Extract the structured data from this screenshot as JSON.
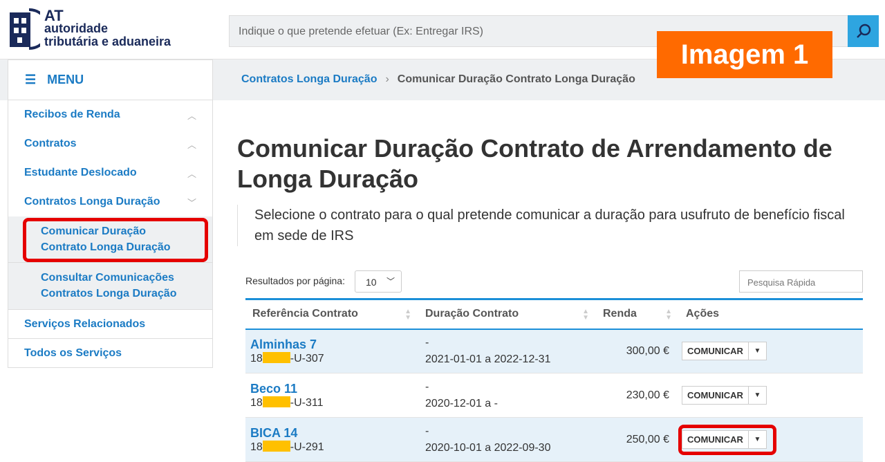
{
  "header": {
    "logo_line1": "AT",
    "logo_line2": "autoridade",
    "logo_line3": "tributária e aduaneira",
    "search_placeholder": "Indique o que pretende efetuar (Ex: Entregar IRS)"
  },
  "badge": "Imagem 1",
  "menu": {
    "label": "MENU"
  },
  "breadcrumb": {
    "parent": "Contratos Longa Duração",
    "current": "Comunicar Duração Contrato Longa Duração"
  },
  "sidebar": {
    "items": [
      {
        "label": "Recibos de Renda"
      },
      {
        "label": "Contratos"
      },
      {
        "label": "Estudante Deslocado"
      },
      {
        "label": "Contratos Longa Duração"
      }
    ],
    "sub": [
      {
        "label": "Comunicar Duração Contrato Longa Duração"
      },
      {
        "label": "Consultar Comunicações Contratos Longa Duração"
      }
    ],
    "bottom": [
      {
        "label": "Serviços Relacionados"
      },
      {
        "label": "Todos os Serviços"
      }
    ]
  },
  "page": {
    "title": "Comunicar Duração Contrato de Arrendamento de Longa Duração",
    "lead": "Selecione o contrato para o qual pretende comunicar a duração para usufruto de benefício fiscal em sede de IRS",
    "rpp_label": "Resultados por página:",
    "rpp_value": "10",
    "quick_search": "Pesquisa Rápida"
  },
  "table": {
    "headers": [
      "Referência Contrato",
      "Duração Contrato",
      "Renda",
      "Ações"
    ],
    "rows": [
      {
        "name": "Alminhas 7",
        "ref_prefix": "18",
        "ref_suffix": "-U-307",
        "dur1": "-",
        "dur2": "2021-01-01 a 2022-12-31",
        "renda": "300,00 €",
        "action": "COMUNICAR"
      },
      {
        "name": "Beco 11",
        "ref_prefix": "18",
        "ref_suffix": "-U-311",
        "dur1": "-",
        "dur2": "2020-12-01 a -",
        "renda": "230,00 €",
        "action": "COMUNICAR"
      },
      {
        "name": "BICA 14",
        "ref_prefix": "18",
        "ref_suffix": "-U-291",
        "dur1": "-",
        "dur2": "2020-10-01 a 2022-09-30",
        "renda": "250,00 €",
        "action": "COMUNICAR"
      }
    ]
  },
  "colors": {
    "accent": "#1b7bc4",
    "highlight": "#e50000",
    "badge": "#ff6a00"
  }
}
